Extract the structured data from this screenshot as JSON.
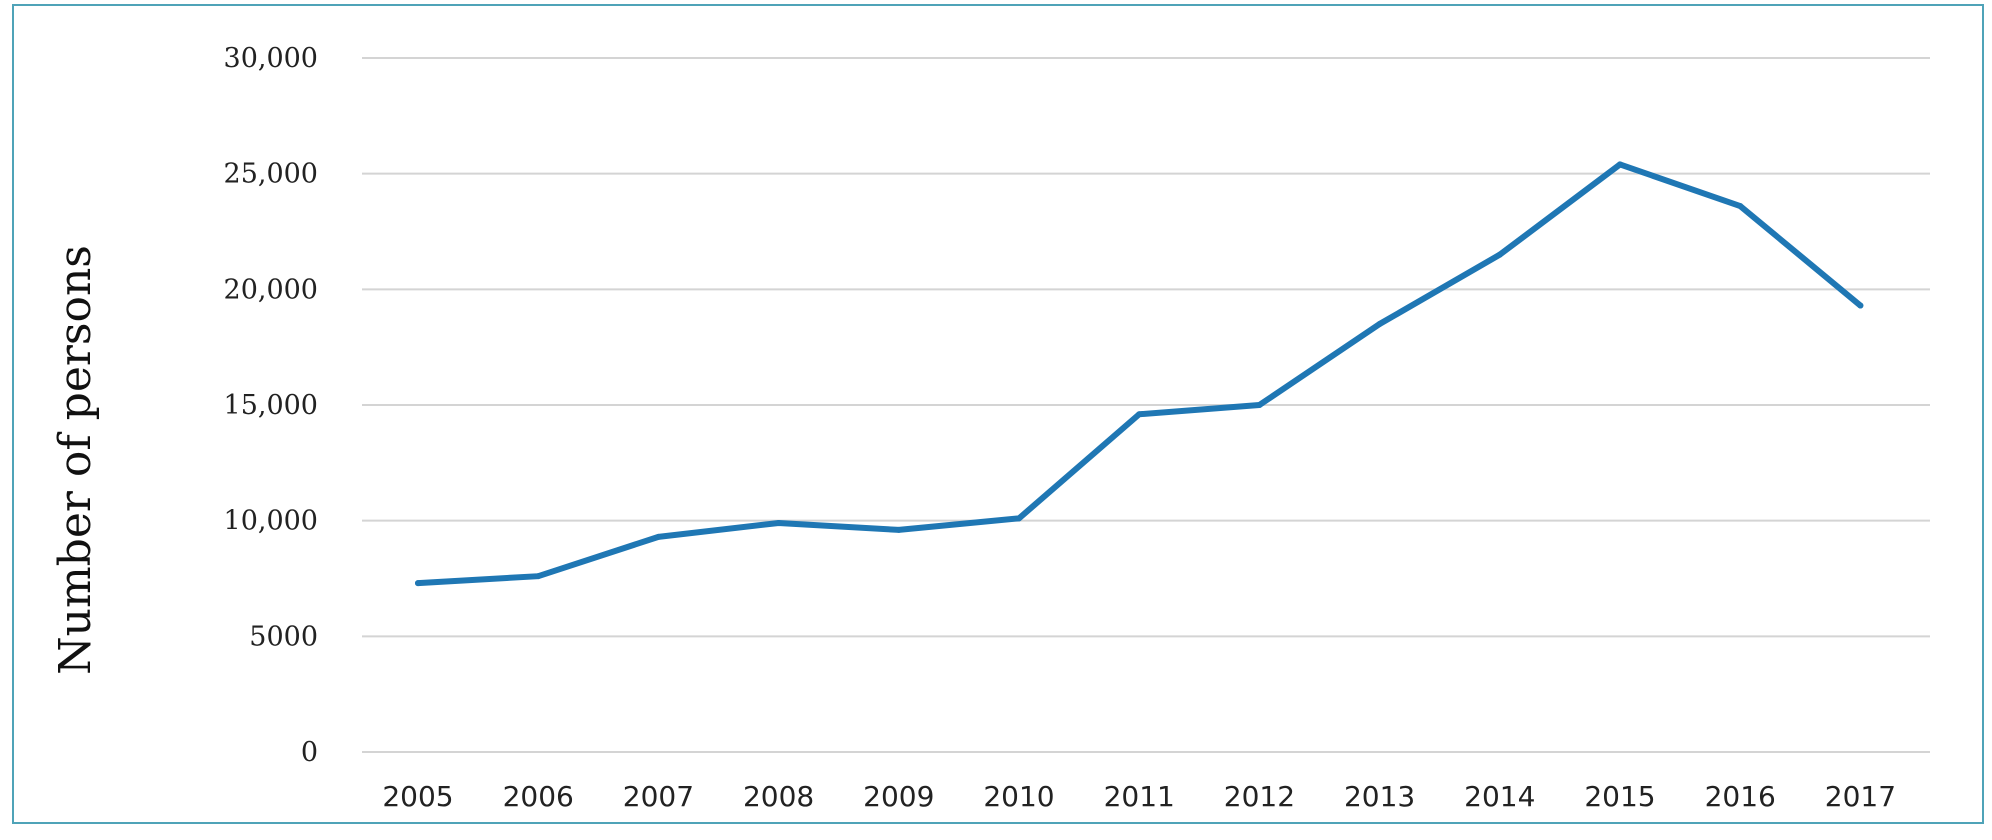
{
  "chart_data": {
    "type": "line",
    "title": "",
    "xlabel": "",
    "ylabel": "Number of persons",
    "x": [
      "2005",
      "2006",
      "2007",
      "2008",
      "2009",
      "2010",
      "2011",
      "2012",
      "2013",
      "2014",
      "2015",
      "2016",
      "2017"
    ],
    "series": [
      {
        "values": [
          7300,
          7600,
          9300,
          9900,
          9600,
          10100,
          14600,
          15000,
          18500,
          21500,
          25400,
          23600,
          19300
        ],
        "color": "#1f77b4"
      }
    ],
    "ylim": [
      0,
      30000
    ],
    "yticks": [
      0,
      5000,
      10000,
      15000,
      20000,
      25000,
      30000
    ],
    "ytick_labels": [
      "0",
      "5000",
      "10,000",
      "15,000",
      "20,000",
      "25,000",
      "30,000"
    ],
    "grid": true,
    "legend": "none"
  },
  "colors": {
    "frame_border": "#4fa3b8",
    "line": "#1f77b4",
    "grid": "#d4d4d4"
  }
}
